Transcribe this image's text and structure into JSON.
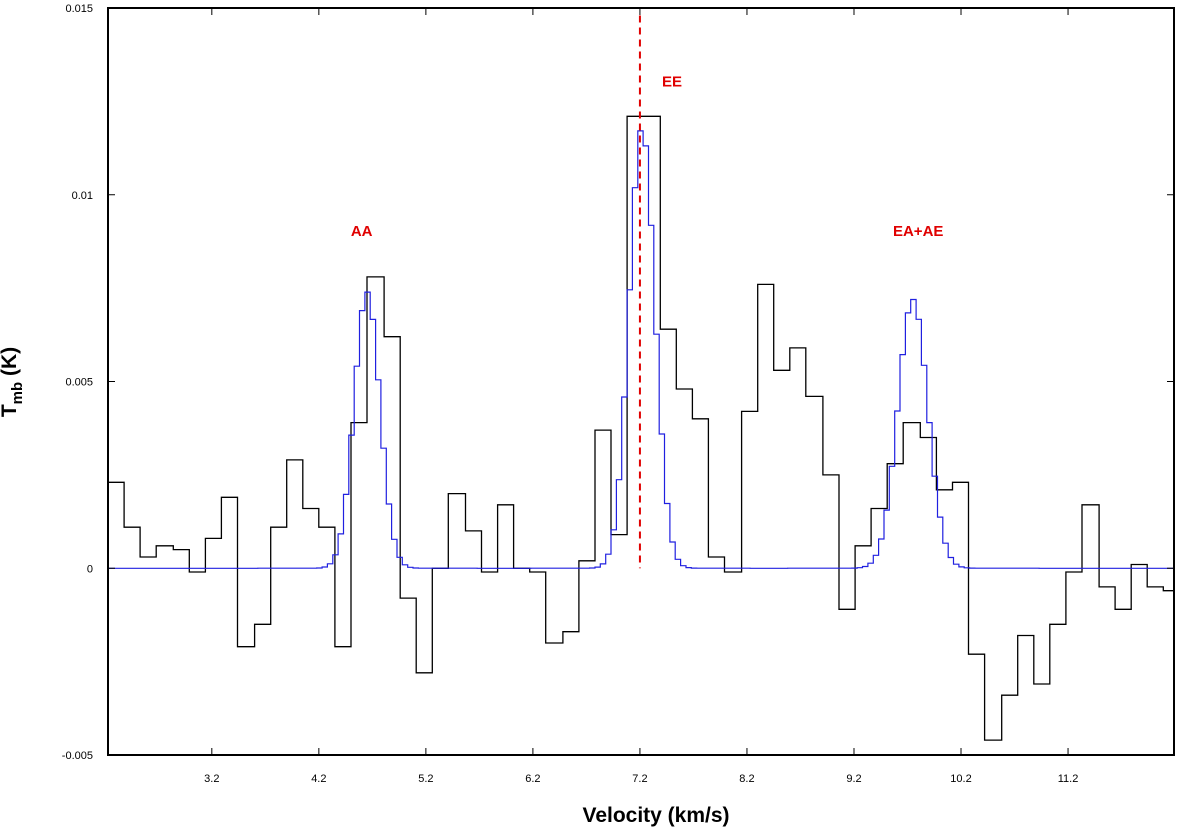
{
  "chart_data": {
    "type": "line",
    "title": "",
    "xlabel": "Velocity (km/s)",
    "ylabel_main": "T",
    "ylabel_sub": "mb",
    "ylabel_unit": "(K)",
    "xlim": [
      2.23,
      12.19
    ],
    "ylim": [
      -0.005,
      0.015
    ],
    "x_ticks": [
      {
        "value": 3.2,
        "label": "3.2"
      },
      {
        "value": 4.2,
        "label": "4.2"
      },
      {
        "value": 5.2,
        "label": "5.2"
      },
      {
        "value": 6.2,
        "label": "6.2"
      },
      {
        "value": 7.2,
        "label": "7.2"
      },
      {
        "value": 8.2,
        "label": "8.2"
      },
      {
        "value": 9.2,
        "label": "9.2"
      },
      {
        "value": 10.2,
        "label": "10.2"
      },
      {
        "value": 11.2,
        "label": "11.2"
      }
    ],
    "y_ticks": [
      {
        "value": -0.005,
        "label": "-0.005"
      },
      {
        "value": 0,
        "label": "0"
      },
      {
        "value": 0.005,
        "label": "0.005"
      },
      {
        "value": 0.01,
        "label": "0.01"
      },
      {
        "value": 0.015,
        "label": "0.015"
      }
    ],
    "grid": false,
    "series": [
      {
        "style": "step",
        "color": "#000000",
        "x": [
          2.23,
          2.38,
          2.53,
          2.68,
          2.84,
          2.99,
          3.14,
          3.29,
          3.44,
          3.6,
          3.75,
          3.9,
          4.05,
          4.2,
          4.35,
          4.5,
          4.65,
          4.81,
          4.96,
          5.11,
          5.26,
          5.41,
          5.57,
          5.72,
          5.87,
          6.02,
          6.17,
          6.32,
          6.48,
          6.63,
          6.78,
          6.93,
          7.08,
          7.24,
          7.39,
          7.54,
          7.69,
          7.84,
          7.99,
          8.15,
          8.3,
          8.45,
          8.6,
          8.75,
          8.91,
          9.06,
          9.21,
          9.36,
          9.51,
          9.66,
          9.82,
          9.97,
          10.12,
          10.27,
          10.42,
          10.58,
          10.73,
          10.88,
          11.03,
          11.18,
          11.33,
          11.49,
          11.64,
          11.79,
          11.94,
          12.09
        ],
        "y": [
          0.0023,
          0.0011,
          0.0003,
          0.0006,
          0.0005,
          -0.0001,
          0.0008,
          0.0019,
          -0.0021,
          -0.0015,
          0.0011,
          0.0029,
          0.0016,
          0.0011,
          -0.0021,
          0.0039,
          0.0078,
          0.0062,
          -0.0008,
          -0.0028,
          0.0,
          0.002,
          0.001,
          -0.0001,
          0.0017,
          0.0,
          -0.0001,
          -0.002,
          -0.0017,
          0.0002,
          0.0037,
          0.0009,
          0.0121,
          0.0121,
          0.0064,
          0.0048,
          0.004,
          0.0003,
          -0.0001,
          0.0042,
          0.0076,
          0.0053,
          0.0059,
          0.0046,
          0.0025,
          -0.0011,
          0.0006,
          0.0016,
          0.0028,
          0.0039,
          0.0035,
          0.0021,
          0.0023,
          -0.0023,
          -0.0046,
          -0.0034,
          -0.0018,
          -0.0031,
          -0.0015,
          -0.0001,
          0.0017,
          -0.0005,
          -0.0011,
          0.0001,
          -0.0005,
          -0.0006
        ],
        "x_end": 12.19,
        "end_rise": 0.0033
      },
      {
        "style": "step",
        "color": "#2020e0",
        "model_baseline": 0,
        "x_end": 12.19,
        "components": [
          {
            "center": 4.65,
            "amplitude": 0.0074,
            "sigma": 0.12
          },
          {
            "center": 7.22,
            "amplitude": 0.0118,
            "sigma": 0.12
          },
          {
            "center": 9.75,
            "amplitude": 0.0072,
            "sigma": 0.14
          }
        ],
        "x_start": 2.23,
        "step": 0.05
      }
    ],
    "reference_line": {
      "x": 7.2,
      "color": "#e00000",
      "style": "dashed"
    },
    "annotations": [
      {
        "text": "AA",
        "x": 4.6,
        "y": 0.0089
      },
      {
        "text": "EE",
        "x": 7.5,
        "y": 0.0129
      },
      {
        "text": "EA+AE",
        "x": 9.8,
        "y": 0.0089
      }
    ]
  }
}
